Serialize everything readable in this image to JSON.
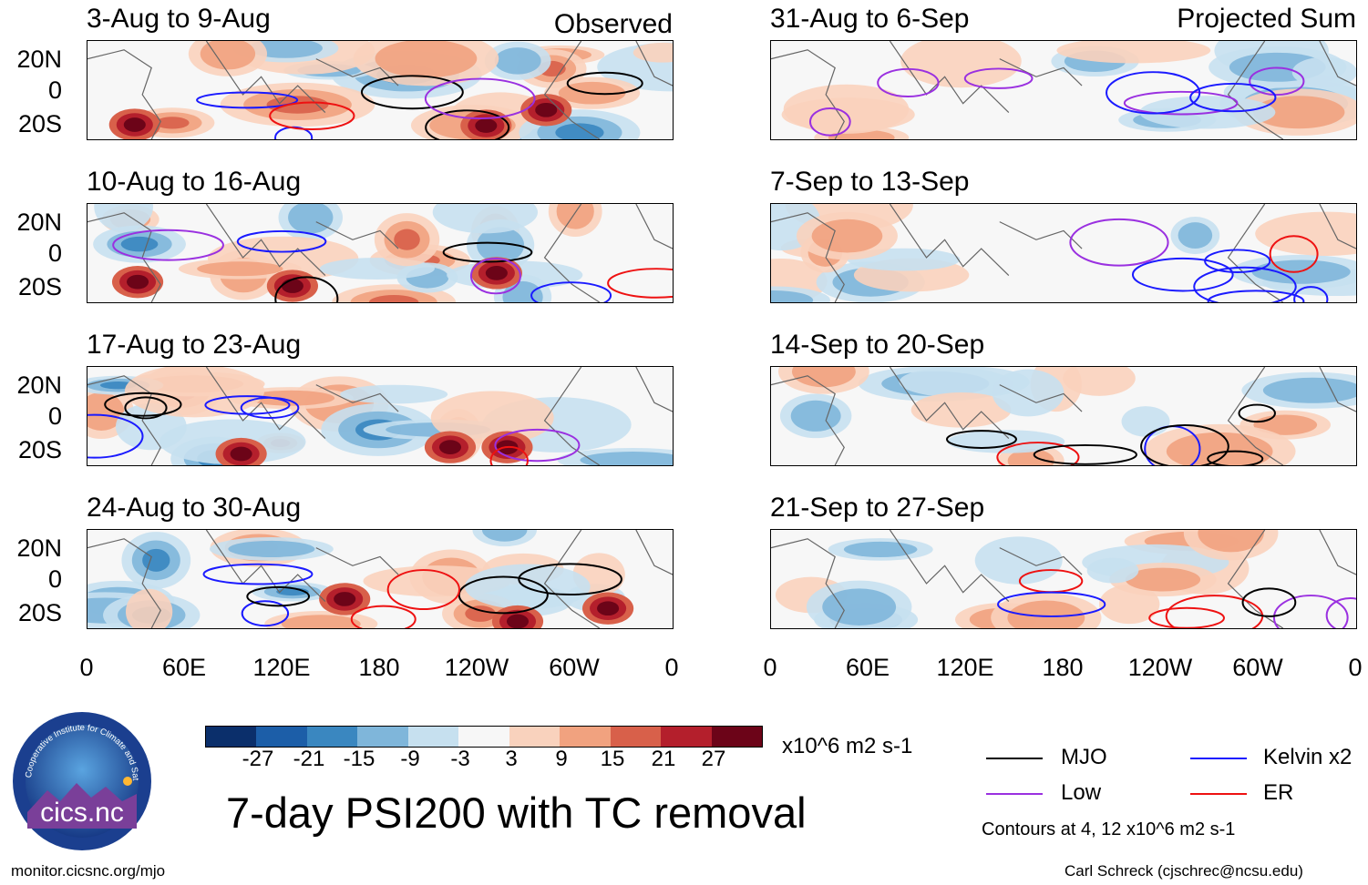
{
  "chart_data": {
    "type": "heatmap",
    "title": "7-day PSI200 with TC removal",
    "variable": "PSI200 anomaly",
    "units": "x10^6 m2 s-1",
    "columns": [
      {
        "label": "Observed",
        "panels": [
          {
            "period": "3-Aug to 9-Aug"
          },
          {
            "period": "10-Aug to 16-Aug"
          },
          {
            "period": "17-Aug to 23-Aug"
          },
          {
            "period": "24-Aug to 30-Aug"
          }
        ]
      },
      {
        "label": "Projected Sum",
        "panels": [
          {
            "period": "31-Aug to 6-Sep"
          },
          {
            "period": "7-Sep to 13-Sep"
          },
          {
            "period": "14-Sep to 20-Sep"
          },
          {
            "period": "21-Sep to 27-Sep"
          }
        ]
      }
    ],
    "lat_ticks": [
      "20N",
      "0",
      "20S"
    ],
    "lat_range": [
      -30,
      30
    ],
    "lon_ticks": [
      "0",
      "60E",
      "120E",
      "180",
      "120W",
      "60W",
      "0"
    ],
    "lon_range": [
      0,
      360
    ],
    "colorbar": {
      "ticks": [
        "-27",
        "-21",
        "-15",
        "-9",
        "-3",
        "3",
        "9",
        "15",
        "21",
        "27"
      ],
      "colors": [
        "#0b2f6b",
        "#1c5ea8",
        "#3a87c0",
        "#7fb6da",
        "#c6e0ef",
        "#f7f7f7",
        "#f9d2bd",
        "#f1a27f",
        "#d8604a",
        "#b41f2c",
        "#6c0418"
      ]
    },
    "legend": [
      {
        "label": "MJO",
        "color": "#000000"
      },
      {
        "label": "Kelvin x2",
        "color": "#1a1aff"
      },
      {
        "label": "Low",
        "color": "#9a30e0"
      },
      {
        "label": "ER",
        "color": "#ee1111"
      }
    ],
    "contour_note": "Contours at 4, 12 x10^6 m2 s-1"
  },
  "logo_text": "cics.nc",
  "logo_ring_text": "Cooperative Institute for Climate and Satellites",
  "footer_left": "monitor.cicsnc.org/mjo",
  "footer_right": "Carl Schreck (cjschrec@ncsu.edu)"
}
